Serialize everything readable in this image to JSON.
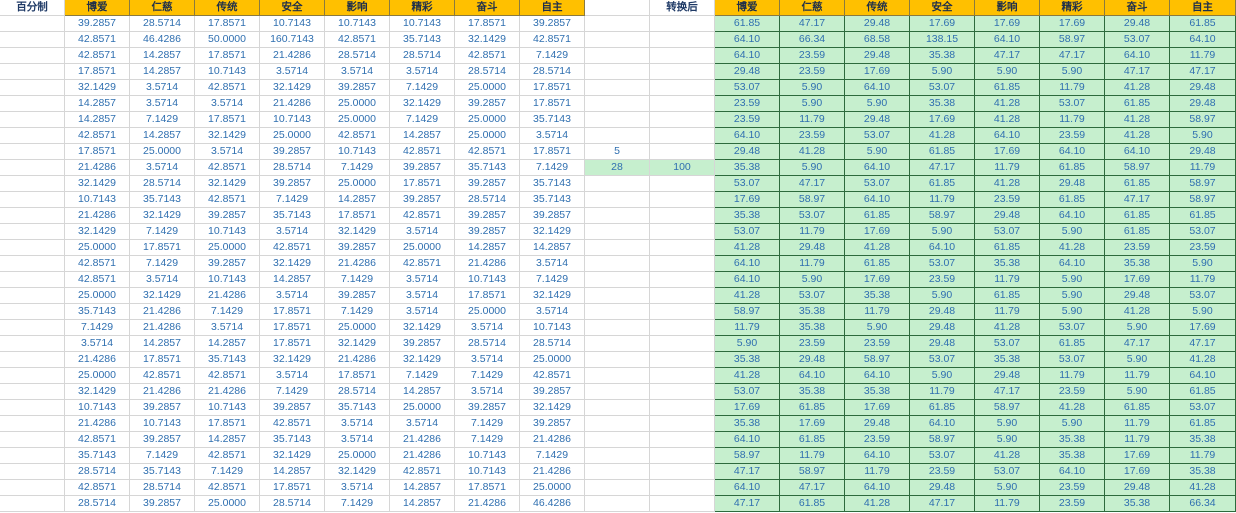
{
  "left_title": "百分制",
  "right_title": "转换后",
  "headers": [
    "博爱",
    "仁慈",
    "传统",
    "安全",
    "影响",
    "精彩",
    "奋斗",
    "自主"
  ],
  "params": {
    "p1": "5",
    "p2": "28",
    "p3": "100"
  },
  "left_rows": [
    [
      "39.2857",
      "28.5714",
      "17.8571",
      "10.7143",
      "10.7143",
      "10.7143",
      "17.8571",
      "39.2857"
    ],
    [
      "42.8571",
      "46.4286",
      "50.0000",
      "160.7143",
      "42.8571",
      "35.7143",
      "32.1429",
      "42.8571"
    ],
    [
      "42.8571",
      "14.2857",
      "17.8571",
      "21.4286",
      "28.5714",
      "28.5714",
      "42.8571",
      "7.1429"
    ],
    [
      "17.8571",
      "14.2857",
      "10.7143",
      "3.5714",
      "3.5714",
      "3.5714",
      "28.5714",
      "28.5714"
    ],
    [
      "32.1429",
      "3.5714",
      "42.8571",
      "32.1429",
      "39.2857",
      "7.1429",
      "25.0000",
      "17.8571"
    ],
    [
      "14.2857",
      "3.5714",
      "3.5714",
      "21.4286",
      "25.0000",
      "32.1429",
      "39.2857",
      "17.8571"
    ],
    [
      "14.2857",
      "7.1429",
      "17.8571",
      "10.7143",
      "25.0000",
      "7.1429",
      "25.0000",
      "35.7143"
    ],
    [
      "42.8571",
      "14.2857",
      "32.1429",
      "25.0000",
      "42.8571",
      "14.2857",
      "25.0000",
      "3.5714"
    ],
    [
      "17.8571",
      "25.0000",
      "3.5714",
      "39.2857",
      "10.7143",
      "42.8571",
      "42.8571",
      "17.8571"
    ],
    [
      "21.4286",
      "3.5714",
      "42.8571",
      "28.5714",
      "7.1429",
      "39.2857",
      "35.7143",
      "7.1429"
    ],
    [
      "32.1429",
      "28.5714",
      "32.1429",
      "39.2857",
      "25.0000",
      "17.8571",
      "39.2857",
      "35.7143"
    ],
    [
      "10.7143",
      "35.7143",
      "42.8571",
      "7.1429",
      "14.2857",
      "39.2857",
      "28.5714",
      "35.7143"
    ],
    [
      "21.4286",
      "32.1429",
      "39.2857",
      "35.7143",
      "17.8571",
      "42.8571",
      "39.2857",
      "39.2857"
    ],
    [
      "32.1429",
      "7.1429",
      "10.7143",
      "3.5714",
      "32.1429",
      "3.5714",
      "39.2857",
      "32.1429"
    ],
    [
      "25.0000",
      "17.8571",
      "25.0000",
      "42.8571",
      "39.2857",
      "25.0000",
      "14.2857",
      "14.2857"
    ],
    [
      "42.8571",
      "7.1429",
      "39.2857",
      "32.1429",
      "21.4286",
      "42.8571",
      "21.4286",
      "3.5714"
    ],
    [
      "42.8571",
      "3.5714",
      "10.7143",
      "14.2857",
      "7.1429",
      "3.5714",
      "10.7143",
      "7.1429"
    ],
    [
      "25.0000",
      "32.1429",
      "21.4286",
      "3.5714",
      "39.2857",
      "3.5714",
      "17.8571",
      "32.1429"
    ],
    [
      "35.7143",
      "21.4286",
      "7.1429",
      "17.8571",
      "7.1429",
      "3.5714",
      "25.0000",
      "3.5714"
    ],
    [
      "7.1429",
      "21.4286",
      "3.5714",
      "17.8571",
      "25.0000",
      "32.1429",
      "3.5714",
      "10.7143"
    ],
    [
      "3.5714",
      "14.2857",
      "14.2857",
      "17.8571",
      "32.1429",
      "39.2857",
      "28.5714",
      "28.5714"
    ],
    [
      "21.4286",
      "17.8571",
      "35.7143",
      "32.1429",
      "21.4286",
      "32.1429",
      "3.5714",
      "25.0000"
    ],
    [
      "25.0000",
      "42.8571",
      "42.8571",
      "3.5714",
      "17.8571",
      "7.1429",
      "7.1429",
      "42.8571"
    ],
    [
      "32.1429",
      "21.4286",
      "21.4286",
      "7.1429",
      "28.5714",
      "14.2857",
      "3.5714",
      "39.2857"
    ],
    [
      "10.7143",
      "39.2857",
      "10.7143",
      "39.2857",
      "35.7143",
      "25.0000",
      "39.2857",
      "32.1429"
    ],
    [
      "21.4286",
      "10.7143",
      "17.8571",
      "42.8571",
      "3.5714",
      "3.5714",
      "7.1429",
      "39.2857"
    ],
    [
      "42.8571",
      "39.2857",
      "14.2857",
      "35.7143",
      "3.5714",
      "21.4286",
      "7.1429",
      "21.4286"
    ],
    [
      "35.7143",
      "7.1429",
      "42.8571",
      "32.1429",
      "25.0000",
      "21.4286",
      "10.7143",
      "7.1429"
    ],
    [
      "28.5714",
      "35.7143",
      "7.1429",
      "14.2857",
      "32.1429",
      "42.8571",
      "10.7143",
      "21.4286"
    ],
    [
      "42.8571",
      "28.5714",
      "42.8571",
      "17.8571",
      "3.5714",
      "14.2857",
      "17.8571",
      "25.0000"
    ],
    [
      "28.5714",
      "39.2857",
      "25.0000",
      "28.5714",
      "7.1429",
      "14.2857",
      "21.4286",
      "46.4286"
    ]
  ],
  "right_rows": [
    [
      "61.85",
      "47.17",
      "29.48",
      "17.69",
      "17.69",
      "17.69",
      "29.48",
      "61.85"
    ],
    [
      "64.10",
      "66.34",
      "68.58",
      "138.15",
      "64.10",
      "58.97",
      "53.07",
      "64.10"
    ],
    [
      "64.10",
      "23.59",
      "29.48",
      "35.38",
      "47.17",
      "47.17",
      "64.10",
      "11.79"
    ],
    [
      "29.48",
      "23.59",
      "17.69",
      "5.90",
      "5.90",
      "5.90",
      "47.17",
      "47.17"
    ],
    [
      "53.07",
      "5.90",
      "64.10",
      "53.07",
      "61.85",
      "11.79",
      "41.28",
      "29.48"
    ],
    [
      "23.59",
      "5.90",
      "5.90",
      "35.38",
      "41.28",
      "53.07",
      "61.85",
      "29.48"
    ],
    [
      "23.59",
      "11.79",
      "29.48",
      "17.69",
      "41.28",
      "11.79",
      "41.28",
      "58.97"
    ],
    [
      "64.10",
      "23.59",
      "53.07",
      "41.28",
      "64.10",
      "23.59",
      "41.28",
      "5.90"
    ],
    [
      "29.48",
      "41.28",
      "5.90",
      "61.85",
      "17.69",
      "64.10",
      "64.10",
      "29.48"
    ],
    [
      "35.38",
      "5.90",
      "64.10",
      "47.17",
      "11.79",
      "61.85",
      "58.97",
      "11.79"
    ],
    [
      "53.07",
      "47.17",
      "53.07",
      "61.85",
      "41.28",
      "29.48",
      "61.85",
      "58.97"
    ],
    [
      "17.69",
      "58.97",
      "64.10",
      "11.79",
      "23.59",
      "61.85",
      "47.17",
      "58.97"
    ],
    [
      "35.38",
      "53.07",
      "61.85",
      "58.97",
      "29.48",
      "64.10",
      "61.85",
      "61.85"
    ],
    [
      "53.07",
      "11.79",
      "17.69",
      "5.90",
      "53.07",
      "5.90",
      "61.85",
      "53.07"
    ],
    [
      "41.28",
      "29.48",
      "41.28",
      "64.10",
      "61.85",
      "41.28",
      "23.59",
      "23.59"
    ],
    [
      "64.10",
      "11.79",
      "61.85",
      "53.07",
      "35.38",
      "64.10",
      "35.38",
      "5.90"
    ],
    [
      "64.10",
      "5.90",
      "17.69",
      "23.59",
      "11.79",
      "5.90",
      "17.69",
      "11.79"
    ],
    [
      "41.28",
      "53.07",
      "35.38",
      "5.90",
      "61.85",
      "5.90",
      "29.48",
      "53.07"
    ],
    [
      "58.97",
      "35.38",
      "11.79",
      "29.48",
      "11.79",
      "5.90",
      "41.28",
      "5.90"
    ],
    [
      "11.79",
      "35.38",
      "5.90",
      "29.48",
      "41.28",
      "53.07",
      "5.90",
      "17.69"
    ],
    [
      "5.90",
      "23.59",
      "23.59",
      "29.48",
      "53.07",
      "61.85",
      "47.17",
      "47.17"
    ],
    [
      "35.38",
      "29.48",
      "58.97",
      "53.07",
      "35.38",
      "53.07",
      "5.90",
      "41.28"
    ],
    [
      "41.28",
      "64.10",
      "64.10",
      "5.90",
      "29.48",
      "11.79",
      "11.79",
      "64.10"
    ],
    [
      "53.07",
      "35.38",
      "35.38",
      "11.79",
      "47.17",
      "23.59",
      "5.90",
      "61.85"
    ],
    [
      "17.69",
      "61.85",
      "17.69",
      "61.85",
      "58.97",
      "41.28",
      "61.85",
      "53.07"
    ],
    [
      "35.38",
      "17.69",
      "29.48",
      "64.10",
      "5.90",
      "5.90",
      "11.79",
      "61.85"
    ],
    [
      "64.10",
      "61.85",
      "23.59",
      "58.97",
      "5.90",
      "35.38",
      "11.79",
      "35.38"
    ],
    [
      "58.97",
      "11.79",
      "64.10",
      "53.07",
      "41.28",
      "35.38",
      "17.69",
      "11.79"
    ],
    [
      "47.17",
      "58.97",
      "11.79",
      "23.59",
      "53.07",
      "64.10",
      "17.69",
      "35.38"
    ],
    [
      "64.10",
      "47.17",
      "64.10",
      "29.48",
      "5.90",
      "23.59",
      "29.48",
      "41.28"
    ],
    [
      "47.17",
      "61.85",
      "41.28",
      "47.17",
      "11.79",
      "23.59",
      "35.38",
      "66.34"
    ]
  ]
}
